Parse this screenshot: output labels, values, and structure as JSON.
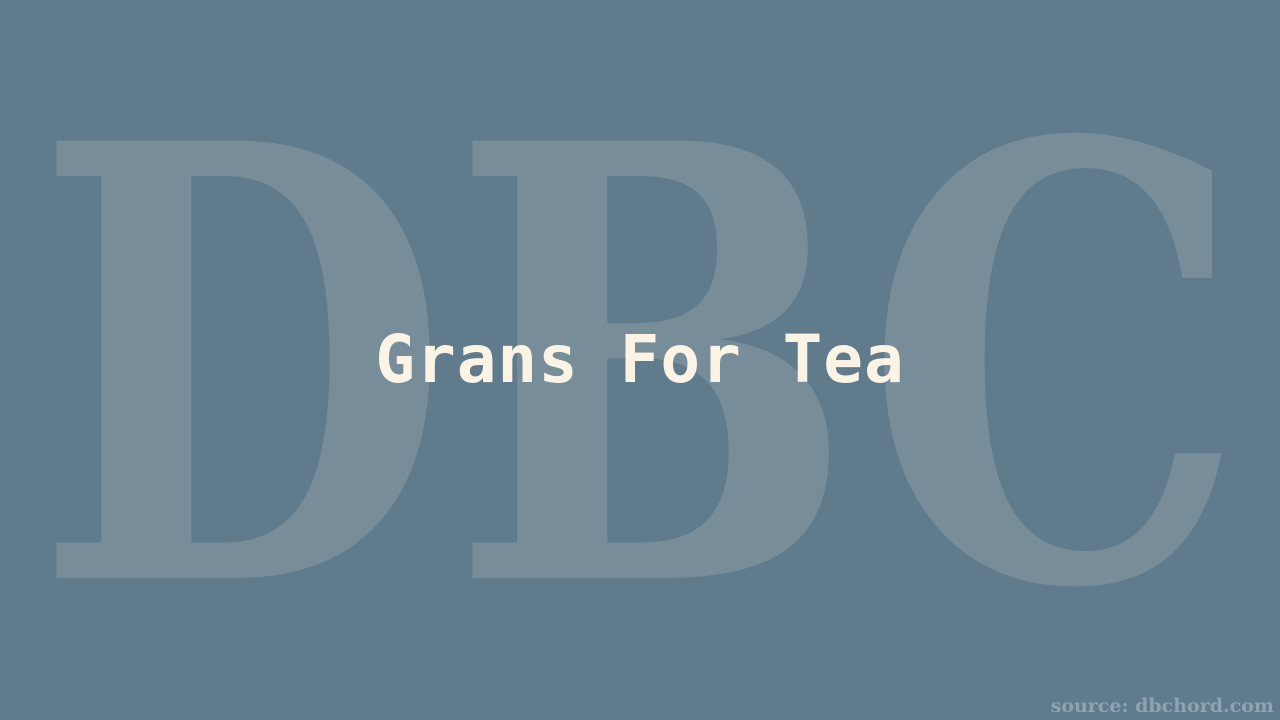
{
  "background": {
    "color": "#5f7b8c",
    "watermark_text": "DBC",
    "watermark_color": "#778d9a"
  },
  "title": "Grans For Tea",
  "title_color": "#fbf4e4",
  "source": "source: dbchord.com"
}
